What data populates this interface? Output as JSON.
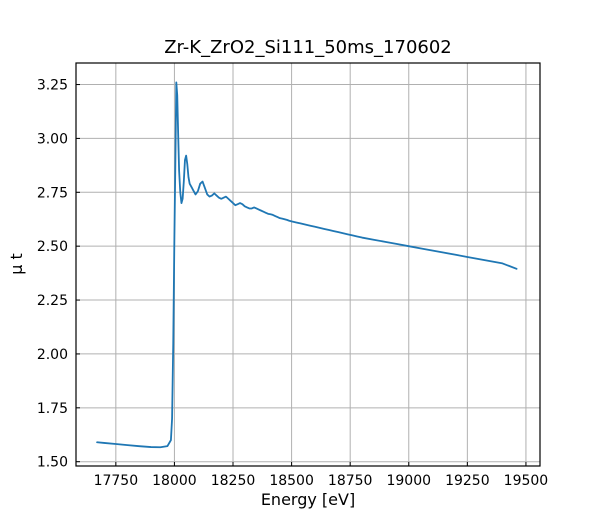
{
  "chart_data": {
    "type": "line",
    "title": "Zr-K_ZrO2_Si111_50ms_170602",
    "xlabel": "Energy [eV]",
    "ylabel": "μ t",
    "xlim": [
      17580,
      19560
    ],
    "ylim": [
      1.48,
      3.35
    ],
    "xticks": [
      17750,
      18000,
      18250,
      18500,
      18750,
      19000,
      19250,
      19500
    ],
    "yticks": [
      1.5,
      1.75,
      2.0,
      2.25,
      2.5,
      2.75,
      3.0,
      3.25
    ],
    "xtick_labels": [
      "17750",
      "18000",
      "18250",
      "18500",
      "18750",
      "19000",
      "19250",
      "19500"
    ],
    "ytick_labels": [
      "1.50",
      "1.75",
      "2.00",
      "2.25",
      "2.50",
      "2.75",
      "3.00",
      "3.25"
    ],
    "grid": true,
    "series": [
      {
        "color": "#1f77b4",
        "x": [
          17670,
          17700,
          17750,
          17800,
          17850,
          17900,
          17940,
          17970,
          17985,
          17990,
          17995,
          18000,
          18005,
          18008,
          18012,
          18016,
          18020,
          18025,
          18030,
          18035,
          18040,
          18045,
          18050,
          18055,
          18060,
          18065,
          18070,
          18075,
          18080,
          18090,
          18100,
          18110,
          18120,
          18130,
          18140,
          18150,
          18160,
          18170,
          18180,
          18190,
          18200,
          18210,
          18220,
          18230,
          18240,
          18250,
          18260,
          18270,
          18280,
          18290,
          18300,
          18310,
          18320,
          18330,
          18340,
          18350,
          18360,
          18370,
          18380,
          18390,
          18400,
          18410,
          18420,
          18430,
          18440,
          18450,
          18460,
          18470,
          18480,
          18490,
          18500,
          18520,
          18540,
          18560,
          18580,
          18600,
          18620,
          18640,
          18660,
          18680,
          18700,
          18720,
          18740,
          18760,
          18780,
          18800,
          18850,
          18900,
          18950,
          19000,
          19050,
          19100,
          19150,
          19200,
          19250,
          19300,
          19350,
          19400,
          19460
        ],
        "y": [
          1.59,
          1.587,
          1.582,
          1.577,
          1.572,
          1.568,
          1.567,
          1.572,
          1.6,
          1.7,
          2.05,
          2.55,
          2.98,
          3.26,
          3.2,
          3.02,
          2.85,
          2.75,
          2.7,
          2.72,
          2.8,
          2.9,
          2.92,
          2.88,
          2.82,
          2.79,
          2.78,
          2.77,
          2.76,
          2.74,
          2.755,
          2.79,
          2.8,
          2.77,
          2.74,
          2.73,
          2.735,
          2.745,
          2.735,
          2.725,
          2.72,
          2.725,
          2.73,
          2.72,
          2.71,
          2.7,
          2.69,
          2.695,
          2.7,
          2.695,
          2.685,
          2.68,
          2.675,
          2.675,
          2.68,
          2.675,
          2.67,
          2.665,
          2.66,
          2.655,
          2.65,
          2.648,
          2.645,
          2.64,
          2.635,
          2.63,
          2.628,
          2.625,
          2.622,
          2.618,
          2.615,
          2.61,
          2.605,
          2.6,
          2.595,
          2.59,
          2.585,
          2.58,
          2.575,
          2.57,
          2.565,
          2.56,
          2.555,
          2.55,
          2.545,
          2.54,
          2.53,
          2.52,
          2.51,
          2.5,
          2.49,
          2.48,
          2.47,
          2.46,
          2.45,
          2.44,
          2.43,
          2.42,
          2.395
        ]
      }
    ]
  }
}
